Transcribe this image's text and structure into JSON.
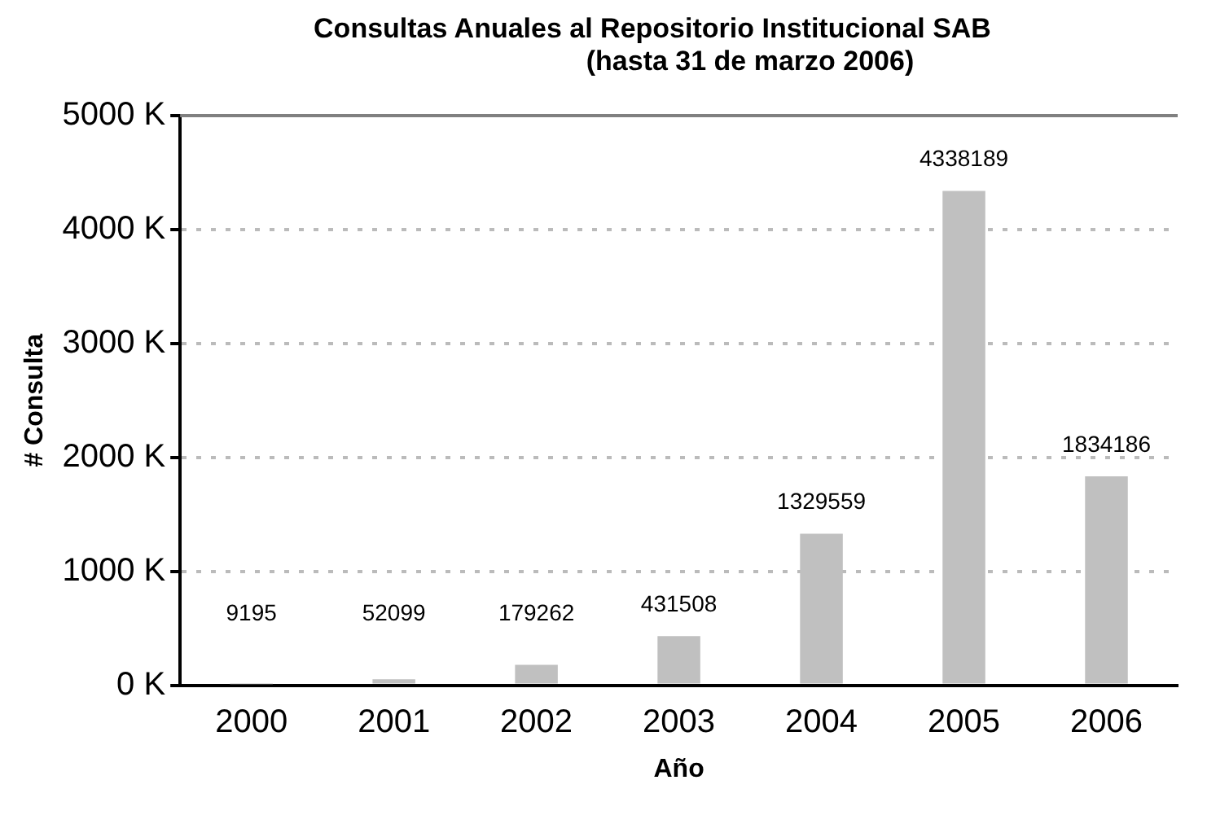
{
  "chart_data": {
    "type": "bar",
    "title": "Consultas Anuales al Repositorio Institucional SAB",
    "subtitle": "(hasta 31 de marzo 2006)",
    "xlabel": "Año",
    "ylabel": "# Consulta",
    "categories": [
      "2000",
      "2001",
      "2002",
      "2003",
      "2004",
      "2005",
      "2006"
    ],
    "values": [
      9195,
      52099,
      179262,
      431508,
      1329559,
      4338189,
      1834186
    ],
    "color": "#c0c0c0",
    "data_labels": true,
    "grid": "y",
    "ylim": [
      0,
      5000000
    ],
    "yticks": [
      {
        "value": 0,
        "label": "0 K"
      },
      {
        "value": 1000000,
        "label": "1000 K"
      },
      {
        "value": 2000000,
        "label": "2000 K"
      },
      {
        "value": 3000000,
        "label": "3000 K"
      },
      {
        "value": 4000000,
        "label": "4000 K"
      },
      {
        "value": 5000000,
        "label": "5000 K"
      }
    ]
  }
}
